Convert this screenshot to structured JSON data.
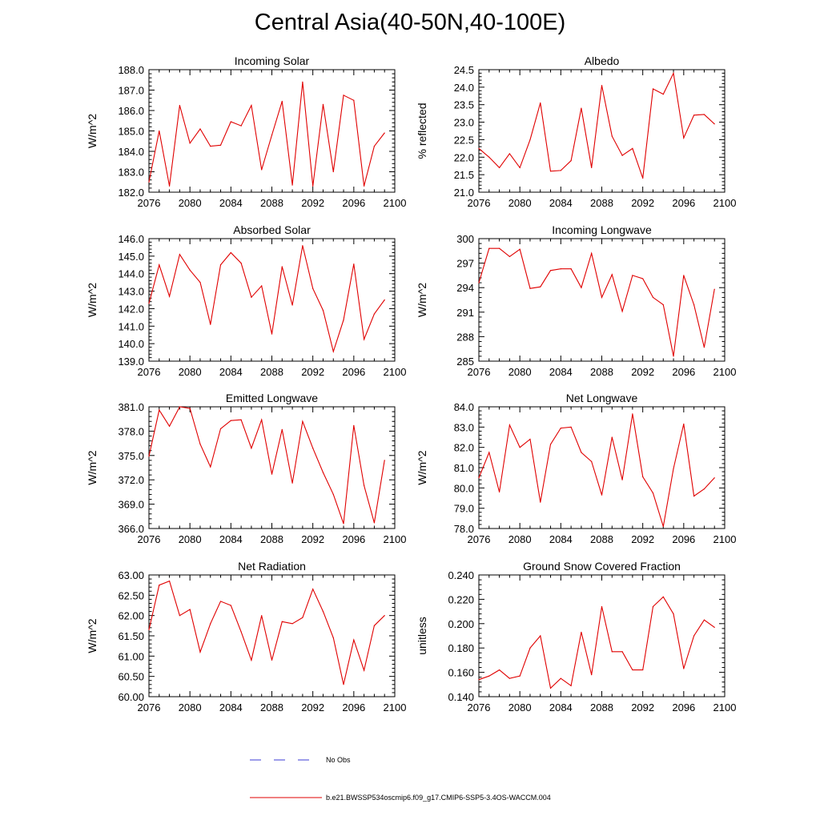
{
  "title": "Central Asia(40-50N,40-100E)",
  "colors": {
    "series": "#e00000",
    "obs": "#3b3bd6",
    "axis": "#000000"
  },
  "legend": {
    "obs_label": "No Obs",
    "model_label": "b.e21.BWSSP534oscmip6.f09_g17.CMIP6-SSP5-3.4OS-WACCM.004"
  },
  "chart_data": [
    {
      "type": "line",
      "title": "Incoming Solar",
      "ylabel": "W/m^2",
      "x": [
        2076,
        2077,
        2078,
        2079,
        2080,
        2081,
        2082,
        2083,
        2084,
        2085,
        2086,
        2087,
        2088,
        2089,
        2090,
        2091,
        2092,
        2093,
        2094,
        2095,
        2096,
        2097,
        2098,
        2099
      ],
      "values": [
        182.5,
        185.0,
        182.3,
        186.25,
        184.4,
        185.1,
        184.25,
        184.3,
        185.45,
        185.25,
        186.25,
        183.1,
        184.8,
        186.45,
        182.35,
        187.4,
        182.3,
        186.3,
        183.0,
        186.75,
        186.5,
        182.3,
        184.25,
        184.9
      ],
      "xlim": [
        2076,
        2100
      ],
      "ylim": [
        182,
        188
      ],
      "xticks": [
        "2076",
        "2080",
        "2084",
        "2088",
        "2092",
        "2096",
        "2100"
      ],
      "yticks": [
        "182.0",
        "183.0",
        "184.0",
        "185.0",
        "186.0",
        "187.0",
        "188.0"
      ],
      "series_name": "b.e21.BWSSP534oscmip6.f09_g17.CMIP6-SSP5-3.4OS-WACCM.004"
    },
    {
      "type": "line",
      "title": "Albedo",
      "ylabel": "% reflected",
      "x": [
        2076,
        2077,
        2078,
        2079,
        2080,
        2081,
        2082,
        2083,
        2084,
        2085,
        2086,
        2087,
        2088,
        2089,
        2090,
        2091,
        2092,
        2093,
        2094,
        2095,
        2096,
        2097,
        2098,
        2099
      ],
      "values": [
        22.25,
        22.0,
        21.7,
        22.1,
        21.7,
        22.5,
        23.55,
        21.6,
        21.62,
        21.9,
        23.4,
        21.7,
        24.05,
        22.6,
        22.05,
        22.25,
        21.4,
        23.95,
        23.8,
        24.4,
        22.55,
        23.2,
        23.22,
        22.95
      ],
      "xlim": [
        2076,
        2100
      ],
      "ylim": [
        21,
        24.5
      ],
      "xticks": [
        "2076",
        "2080",
        "2084",
        "2088",
        "2092",
        "2096",
        "2100"
      ],
      "yticks": [
        "21.0",
        "21.5",
        "22.0",
        "22.5",
        "23.0",
        "23.5",
        "24.0",
        "24.5"
      ],
      "series_name": "b.e21.BWSSP534oscmip6.f09_g17.CMIP6-SSP5-3.4OS-WACCM.004"
    },
    {
      "type": "line",
      "title": "Absorbed Solar",
      "ylabel": "W/m^2",
      "x": [
        2076,
        2077,
        2078,
        2079,
        2080,
        2081,
        2082,
        2083,
        2084,
        2085,
        2086,
        2087,
        2088,
        2089,
        2090,
        2091,
        2092,
        2093,
        2094,
        2095,
        2096,
        2097,
        2098,
        2099
      ],
      "values": [
        142.3,
        144.5,
        142.7,
        145.1,
        144.2,
        143.5,
        141.1,
        144.5,
        145.2,
        144.6,
        142.65,
        143.3,
        140.55,
        144.4,
        142.2,
        145.6,
        143.15,
        141.9,
        139.55,
        141.35,
        144.55,
        140.25,
        141.7,
        142.5
      ],
      "xlim": [
        2076,
        2100
      ],
      "ylim": [
        139,
        146
      ],
      "xticks": [
        "2076",
        "2080",
        "2084",
        "2088",
        "2092",
        "2096",
        "2100"
      ],
      "yticks": [
        "139.0",
        "140.0",
        "141.0",
        "142.0",
        "143.0",
        "144.0",
        "145.0",
        "146.0"
      ],
      "series_name": "b.e21.BWSSP534oscmip6.f09_g17.CMIP6-SSP5-3.4OS-WACCM.004"
    },
    {
      "type": "line",
      "title": "Incoming Longwave",
      "ylabel": "W/m^2",
      "x": [
        2076,
        2077,
        2078,
        2079,
        2080,
        2081,
        2082,
        2083,
        2084,
        2085,
        2086,
        2087,
        2088,
        2089,
        2090,
        2091,
        2092,
        2093,
        2094,
        2095,
        2096,
        2097,
        2098,
        2099
      ],
      "values": [
        294.6,
        298.8,
        298.8,
        297.8,
        298.7,
        293.9,
        294.1,
        296.1,
        296.3,
        296.3,
        294.0,
        298.2,
        292.8,
        295.6,
        291.1,
        295.5,
        295.1,
        292.8,
        291.9,
        285.6,
        295.5,
        291.9,
        286.7,
        293.8
      ],
      "xlim": [
        2076,
        2100
      ],
      "ylim": [
        285,
        300
      ],
      "xticks": [
        "2076",
        "2080",
        "2084",
        "2088",
        "2092",
        "2096",
        "2100"
      ],
      "yticks": [
        "285",
        "288",
        "291",
        "294",
        "297",
        "300"
      ],
      "series_name": "b.e21.BWSSP534oscmip6.f09_g17.CMIP6-SSP5-3.4OS-WACCM.004"
    },
    {
      "type": "line",
      "title": "Emitted Longwave",
      "ylabel": "W/m^2",
      "x": [
        2076,
        2077,
        2078,
        2079,
        2080,
        2081,
        2082,
        2083,
        2084,
        2085,
        2086,
        2087,
        2088,
        2089,
        2090,
        2091,
        2092,
        2093,
        2094,
        2095,
        2096,
        2097,
        2098,
        2099
      ],
      "values": [
        374.9,
        380.6,
        378.6,
        381.0,
        380.8,
        376.4,
        373.6,
        378.3,
        379.3,
        379.4,
        375.9,
        379.4,
        372.7,
        378.2,
        371.6,
        379.2,
        375.9,
        372.9,
        370.2,
        366.6,
        378.7,
        371.3,
        366.7,
        374.4
      ],
      "xlim": [
        2076,
        2100
      ],
      "ylim": [
        366,
        381
      ],
      "xticks": [
        "2076",
        "2080",
        "2084",
        "2088",
        "2092",
        "2096",
        "2100"
      ],
      "yticks": [
        "366.0",
        "369.0",
        "372.0",
        "375.0",
        "378.0",
        "381.0"
      ],
      "series_name": "b.e21.BWSSP534oscmip6.f09_g17.CMIP6-SSP5-3.4OS-WACCM.004"
    },
    {
      "type": "line",
      "title": "Net Longwave",
      "ylabel": "W/m^2",
      "x": [
        2076,
        2077,
        2078,
        2079,
        2080,
        2081,
        2082,
        2083,
        2084,
        2085,
        2086,
        2087,
        2088,
        2089,
        2090,
        2091,
        2092,
        2093,
        2094,
        2095,
        2096,
        2097,
        2098,
        2099
      ],
      "values": [
        80.5,
        81.75,
        79.8,
        83.1,
        82.0,
        82.4,
        79.3,
        82.15,
        82.95,
        83.0,
        81.75,
        81.3,
        79.65,
        82.5,
        80.4,
        83.65,
        80.55,
        79.75,
        78.1,
        80.95,
        83.15,
        79.6,
        79.95,
        80.5
      ],
      "xlim": [
        2076,
        2100
      ],
      "ylim": [
        78,
        84
      ],
      "xticks": [
        "2076",
        "2080",
        "2084",
        "2088",
        "2092",
        "2096",
        "2100"
      ],
      "yticks": [
        "78.0",
        "79.0",
        "80.0",
        "81.0",
        "82.0",
        "83.0",
        "84.0"
      ],
      "series_name": "b.e21.BWSSP534oscmip6.f09_g17.CMIP6-SSP5-3.4OS-WACCM.004"
    },
    {
      "type": "line",
      "title": "Net Radiation",
      "ylabel": "W/m^2",
      "x": [
        2076,
        2077,
        2078,
        2079,
        2080,
        2081,
        2082,
        2083,
        2084,
        2085,
        2086,
        2087,
        2088,
        2089,
        2090,
        2091,
        2092,
        2093,
        2094,
        2095,
        2096,
        2097,
        2098,
        2099
      ],
      "values": [
        61.65,
        62.75,
        62.85,
        62.0,
        62.15,
        61.1,
        61.8,
        62.35,
        62.25,
        61.6,
        60.9,
        62.0,
        60.9,
        61.85,
        61.8,
        61.95,
        62.65,
        62.1,
        61.45,
        60.3,
        61.4,
        60.65,
        61.75,
        62.0
      ],
      "xlim": [
        2076,
        2100
      ],
      "ylim": [
        60,
        63
      ],
      "xticks": [
        "2076",
        "2080",
        "2084",
        "2088",
        "2092",
        "2096",
        "2100"
      ],
      "yticks": [
        "60.00",
        "60.50",
        "61.00",
        "61.50",
        "62.00",
        "62.50",
        "63.00"
      ],
      "series_name": "b.e21.BWSSP534oscmip6.f09_g17.CMIP6-SSP5-3.4OS-WACCM.004"
    },
    {
      "type": "line",
      "title": "Ground Snow Covered Fraction",
      "ylabel": "unitless",
      "x": [
        2076,
        2077,
        2078,
        2079,
        2080,
        2081,
        2082,
        2083,
        2084,
        2085,
        2086,
        2087,
        2088,
        2089,
        2090,
        2091,
        2092,
        2093,
        2094,
        2095,
        2096,
        2097,
        2098,
        2099
      ],
      "values": [
        0.154,
        0.157,
        0.162,
        0.155,
        0.157,
        0.18,
        0.19,
        0.147,
        0.155,
        0.149,
        0.193,
        0.158,
        0.214,
        0.177,
        0.177,
        0.162,
        0.162,
        0.214,
        0.222,
        0.208,
        0.163,
        0.19,
        0.203,
        0.197
      ],
      "xlim": [
        2076,
        2100
      ],
      "ylim": [
        0.14,
        0.24
      ],
      "xticks": [
        "2076",
        "2080",
        "2084",
        "2088",
        "2092",
        "2096",
        "2100"
      ],
      "yticks": [
        "0.140",
        "0.160",
        "0.180",
        "0.200",
        "0.220",
        "0.240"
      ],
      "series_name": "b.e21.BWSSP534oscmip6.f09_g17.CMIP6-SSP5-3.4OS-WACCM.004"
    }
  ]
}
